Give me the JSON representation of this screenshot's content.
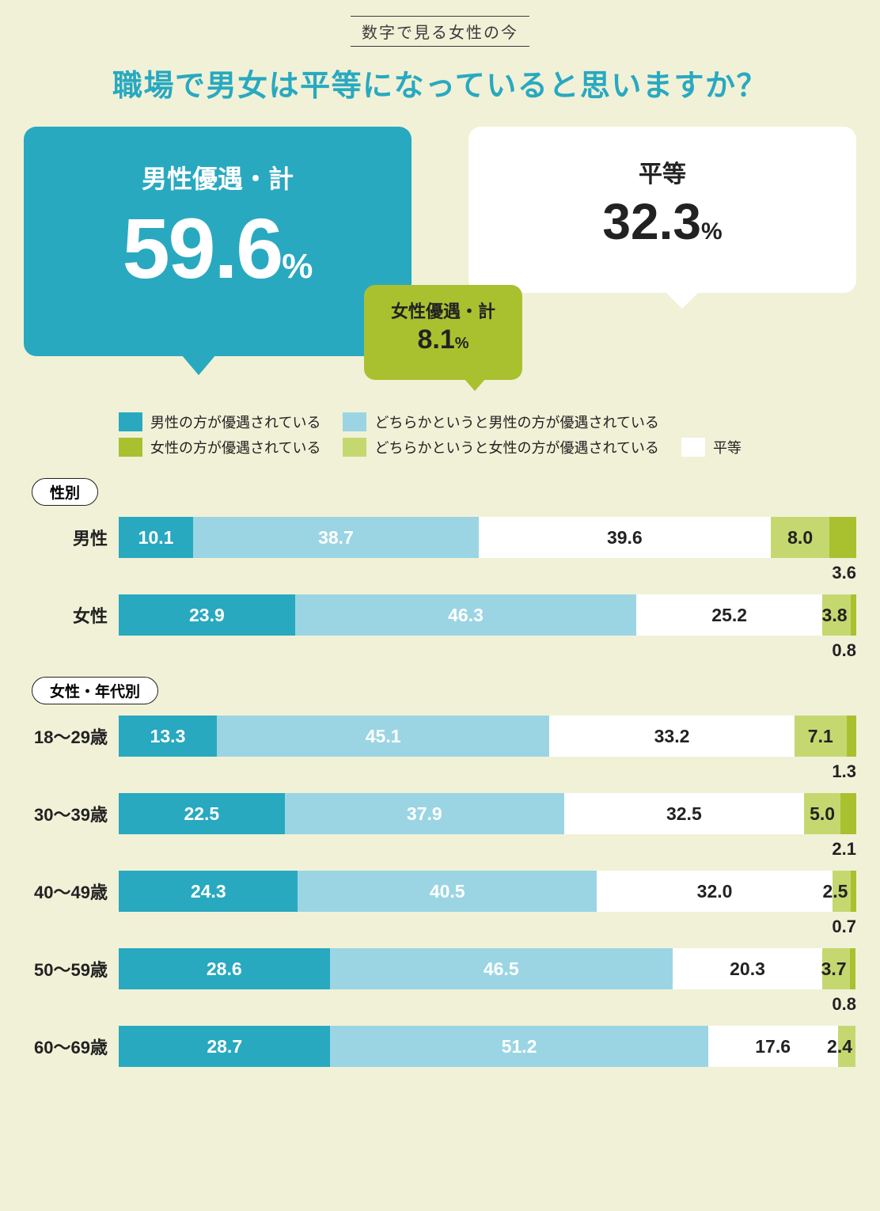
{
  "colors": {
    "background": "#f1f1d8",
    "teal": "#28a9c0",
    "teal_dark": "#1c97ad",
    "sky": "#9bd5e3",
    "white": "#ffffff",
    "olive_light": "#c5d870",
    "olive": "#a9c12f",
    "text_dark": "#222222"
  },
  "header_tag": "数字で見る女性の今",
  "main_question": "職場で男女は平等になっていると思いますか？",
  "bubbles": {
    "male_advantage": {
      "title": "男性優遇・計",
      "value": "59.6",
      "pct": "%"
    },
    "equal": {
      "title": "平等",
      "value": "32.3",
      "pct": "%"
    },
    "female_advantage": {
      "title": "女性優遇・計",
      "value": "8.1",
      "pct": "%"
    }
  },
  "legend": [
    {
      "color": "#28a9c0",
      "label": "男性の方が優遇されている"
    },
    {
      "color": "#9bd5e3",
      "label": "どちらかというと男性の方が優遇されている"
    },
    {
      "color": "#a9c12f",
      "label": "女性の方が優遇されている"
    },
    {
      "color": "#c5d870",
      "label": "どちらかというと女性の方が優遇されている"
    },
    {
      "color": "#ffffff",
      "label": "平等"
    }
  ],
  "sections": [
    {
      "pill": "性別",
      "rows": [
        {
          "label": "男性",
          "segs": [
            {
              "v": 10.1,
              "c": "#28a9c0",
              "t": "#ffffff"
            },
            {
              "v": 38.7,
              "c": "#9bd5e3",
              "t": "#ffffff"
            },
            {
              "v": 39.6,
              "c": "#ffffff",
              "t": "#222222"
            },
            {
              "v": 8.0,
              "c": "#c5d870",
              "t": "#222222"
            },
            {
              "v": 3.6,
              "c": "#a9c12f",
              "t": "#222222",
              "overflow": true
            }
          ]
        },
        {
          "label": "女性",
          "segs": [
            {
              "v": 23.9,
              "c": "#28a9c0",
              "t": "#ffffff"
            },
            {
              "v": 46.3,
              "c": "#9bd5e3",
              "t": "#ffffff"
            },
            {
              "v": 25.2,
              "c": "#ffffff",
              "t": "#222222"
            },
            {
              "v": 3.8,
              "c": "#c5d870",
              "t": "#222222"
            },
            {
              "v": 0.8,
              "c": "#a9c12f",
              "t": "#222222",
              "overflow": true
            }
          ]
        }
      ]
    },
    {
      "pill": "女性・年代別",
      "rows": [
        {
          "label": "18～29歳",
          "segs": [
            {
              "v": 13.3,
              "c": "#28a9c0",
              "t": "#ffffff"
            },
            {
              "v": 45.1,
              "c": "#9bd5e3",
              "t": "#ffffff"
            },
            {
              "v": 33.2,
              "c": "#ffffff",
              "t": "#222222"
            },
            {
              "v": 7.1,
              "c": "#c5d870",
              "t": "#222222"
            },
            {
              "v": 1.3,
              "c": "#a9c12f",
              "t": "#222222",
              "overflow": true
            }
          ]
        },
        {
          "label": "30～39歳",
          "segs": [
            {
              "v": 22.5,
              "c": "#28a9c0",
              "t": "#ffffff"
            },
            {
              "v": 37.9,
              "c": "#9bd5e3",
              "t": "#ffffff"
            },
            {
              "v": 32.5,
              "c": "#ffffff",
              "t": "#222222"
            },
            {
              "v": 5.0,
              "c": "#c5d870",
              "t": "#222222"
            },
            {
              "v": 2.1,
              "c": "#a9c12f",
              "t": "#222222",
              "overflow": true
            }
          ]
        },
        {
          "label": "40～49歳",
          "segs": [
            {
              "v": 24.3,
              "c": "#28a9c0",
              "t": "#ffffff"
            },
            {
              "v": 40.5,
              "c": "#9bd5e3",
              "t": "#ffffff"
            },
            {
              "v": 32.0,
              "c": "#ffffff",
              "t": "#222222"
            },
            {
              "v": 2.5,
              "c": "#c5d870",
              "t": "#222222"
            },
            {
              "v": 0.7,
              "c": "#a9c12f",
              "t": "#222222",
              "overflow": true
            }
          ]
        },
        {
          "label": "50～59歳",
          "segs": [
            {
              "v": 28.6,
              "c": "#28a9c0",
              "t": "#ffffff"
            },
            {
              "v": 46.5,
              "c": "#9bd5e3",
              "t": "#ffffff"
            },
            {
              "v": 20.3,
              "c": "#ffffff",
              "t": "#222222"
            },
            {
              "v": 3.7,
              "c": "#c5d870",
              "t": "#222222"
            },
            {
              "v": 0.8,
              "c": "#a9c12f",
              "t": "#222222",
              "overflow": true
            }
          ]
        },
        {
          "label": "60～69歳",
          "segs": [
            {
              "v": 28.7,
              "c": "#28a9c0",
              "t": "#ffffff"
            },
            {
              "v": 51.2,
              "c": "#9bd5e3",
              "t": "#ffffff"
            },
            {
              "v": 17.6,
              "c": "#ffffff",
              "t": "#222222"
            },
            {
              "v": 2.4,
              "c": "#c5d870",
              "t": "#222222",
              "hide_last_overflow": true
            }
          ]
        }
      ]
    }
  ]
}
